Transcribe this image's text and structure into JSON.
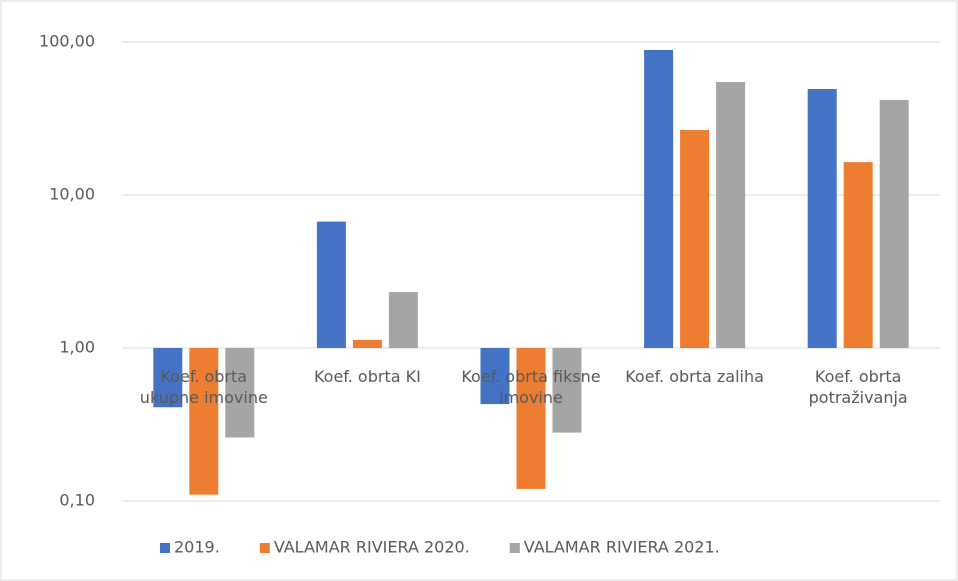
{
  "chart_data": {
    "type": "bar",
    "log_scale": true,
    "grid": true,
    "legend": "bottom",
    "categories": [
      "Koef. obrta ukupne imovine",
      "Koef. obrta KI",
      "Koef. obrta fiksne imovine",
      "Koef. obrta zaliha",
      "Koef. obrta potraživanja"
    ],
    "series": [
      {
        "name": "2019.",
        "color": "#4472c4",
        "values": [
          0.41,
          6.7,
          0.43,
          88.7,
          49.3
        ]
      },
      {
        "name": "VALAMAR RIVIERA 2020.",
        "color": "#ed7d31",
        "values": [
          0.11,
          1.13,
          0.12,
          26.6,
          16.4
        ]
      },
      {
        "name": "VALAMAR RIVIERA 2021.",
        "color": "#a5a5a5",
        "values": [
          0.26,
          2.32,
          0.28,
          54.8,
          41.8
        ]
      }
    ],
    "ylim": [
      0.1,
      100
    ],
    "yticks": [
      {
        "value": 0.1,
        "label": "0,10"
      },
      {
        "value": 1,
        "label": "1,00"
      },
      {
        "value": 10,
        "label": "10,00"
      },
      {
        "value": 100,
        "label": "100,00"
      }
    ]
  }
}
